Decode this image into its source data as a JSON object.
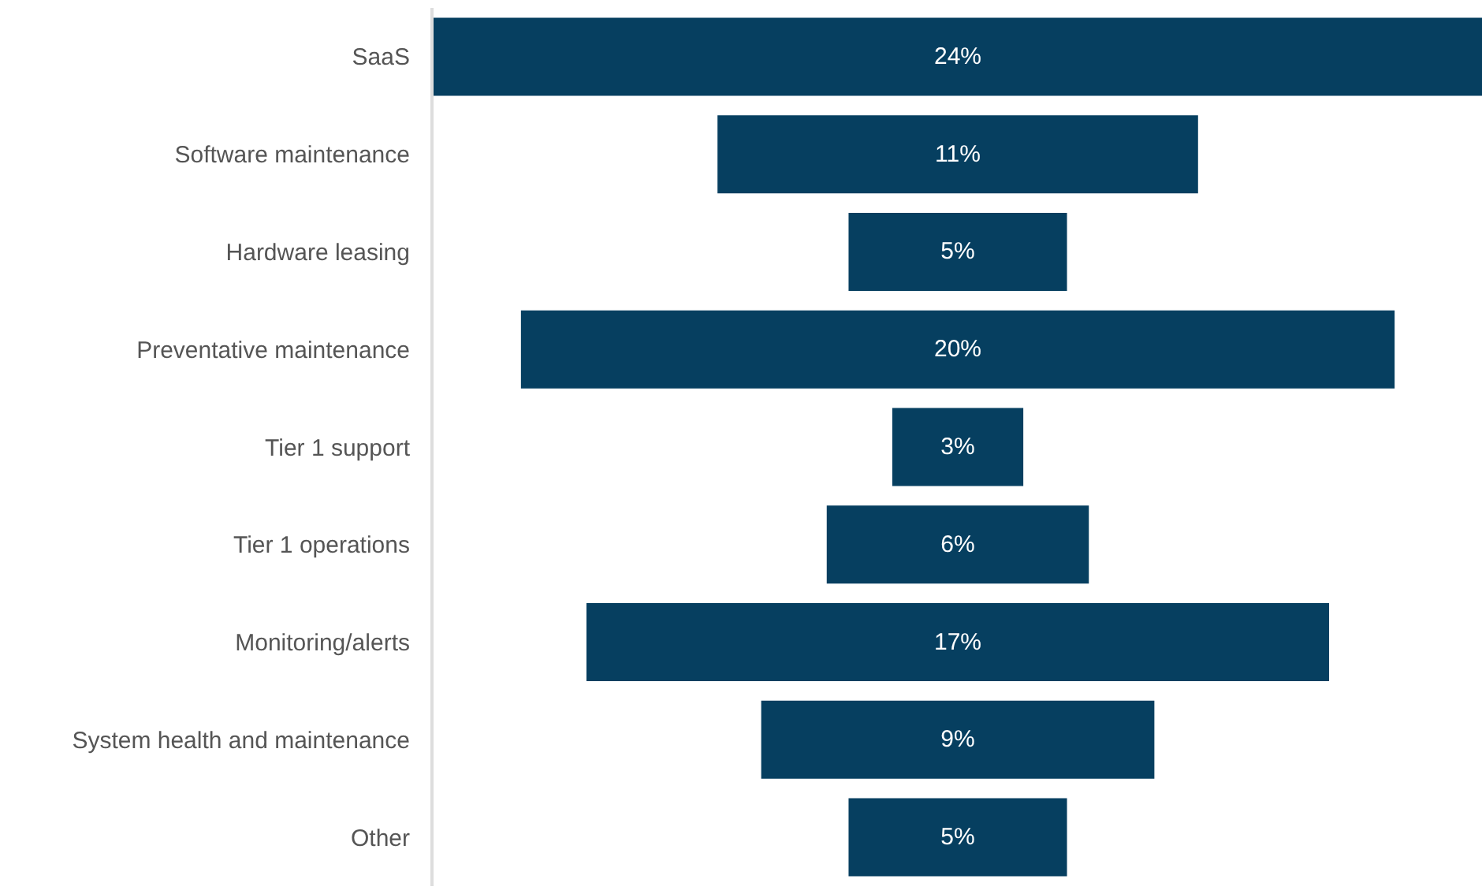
{
  "chart_data": {
    "type": "other",
    "categories": [
      "SaaS",
      "Software maintenance",
      "Hardware leasing",
      "Preventative maintenance",
      "Tier 1 support",
      "Tier 1 operations",
      "Monitoring/alerts",
      "System health and maintenance",
      "Other"
    ],
    "values": [
      24,
      11,
      5,
      20,
      3,
      6,
      17,
      9,
      5
    ],
    "value_labels": [
      "24%",
      "11%",
      "5%",
      "20%",
      "3%",
      "6%",
      "17%",
      "9%",
      "5%"
    ],
    "color": "#063f60"
  }
}
